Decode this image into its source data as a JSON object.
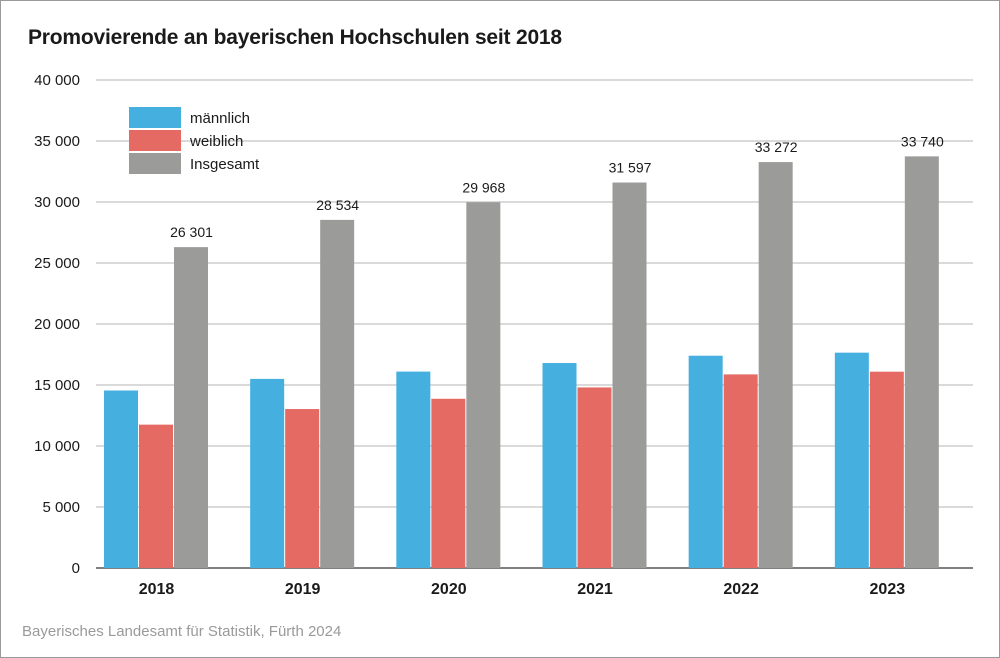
{
  "chart_data": {
    "type": "bar",
    "title": "Promovierende an bayerischen Hochschulen seit 2018",
    "source": "Bayerisches Landesamt für Statistik, Fürth 2024",
    "xlabel": "",
    "ylabel": "",
    "ylim": [
      0,
      40000
    ],
    "yticks": [
      0,
      5000,
      10000,
      15000,
      20000,
      25000,
      30000,
      35000,
      40000
    ],
    "ytick_labels": [
      "0",
      "5 000",
      "10 000",
      "15 000",
      "20 000",
      "25 000",
      "30 000",
      "35 000",
      "40 000"
    ],
    "grid": true,
    "legend_position": "top-left",
    "categories": [
      "2018",
      "2019",
      "2020",
      "2021",
      "2022",
      "2023"
    ],
    "series": [
      {
        "name": "männlich",
        "color": "#45b0df",
        "values": [
          14550,
          15500,
          16100,
          16800,
          17400,
          17650
        ]
      },
      {
        "name": "weiblich",
        "color": "#e66a64",
        "values": [
          11750,
          13030,
          13870,
          14800,
          15870,
          16090
        ]
      },
      {
        "name": "Insgesamt",
        "color": "#9b9b9a",
        "values": [
          26301,
          28534,
          29968,
          31597,
          33272,
          33740
        ],
        "data_labels": [
          "26 301",
          "28 534",
          "29 968",
          "31 597",
          "33 272",
          "33 740"
        ]
      }
    ]
  }
}
